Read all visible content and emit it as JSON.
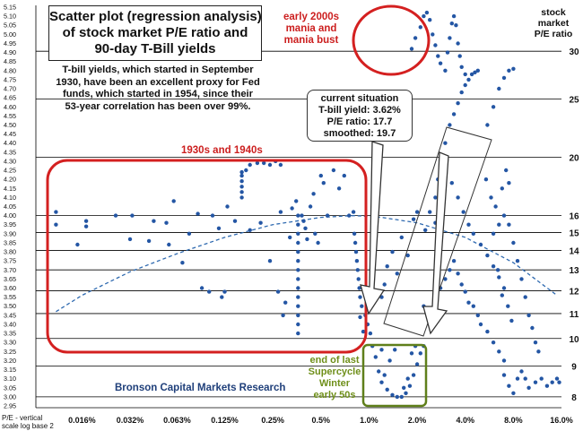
{
  "title_box": {
    "line1": "Scatter plot (regression analysis)",
    "line2": "of stock market P/E ratio and",
    "line3": "90-day T-Bill yields"
  },
  "description": {
    "line1": "T-bill yields, which started in September",
    "line2": "1930, have been an excellent proxy for Fed",
    "line3": "funds, which started in 1954, since their",
    "line4": "53-year correlation has been over 99%."
  },
  "current_situation": {
    "line1": "current situation",
    "line2": "T-bill yield: 3.62%",
    "line3": "P/E ratio: 17.7",
    "line4": "smoothed: 19.7"
  },
  "annotations": {
    "mania_line1": "early 2000s",
    "mania_line2": "mania and",
    "mania_line3": "mania bust",
    "thirties": "1930s and 1940s",
    "winter_line1": "end of last",
    "winter_line2": "Supercycle",
    "winter_line3": "Winter",
    "winter_line4": "early 50s",
    "source": "Bronson Capital Markets Research"
  },
  "right_axis_label": {
    "line1": "stock",
    "line2": "market",
    "line3": "P/E ratio"
  },
  "left_axis_note": {
    "line1": "P/E - vertical",
    "line2": "scale log base 2"
  },
  "colors": {
    "points": "#2456a4",
    "red_box": "#d42020",
    "green_box": "#5f7f1a",
    "curve": "#2f6ab0",
    "grid": "#000000"
  },
  "chart_data": {
    "type": "scatter",
    "xscale": "log2",
    "xlim": [
      0.0001,
      0.16
    ],
    "x_ticks": [
      0.00016,
      0.00032,
      0.00063,
      0.00125,
      0.0025,
      0.005,
      0.01,
      0.02,
      0.04,
      0.08,
      0.16
    ],
    "x_tick_labels": [
      "0.016%",
      "0.032%",
      "0.063%",
      "0.125%",
      "0.25%",
      "0.5%",
      "1.0%",
      "2.0%",
      "4.0%",
      "8.0%",
      "16.0%"
    ],
    "ylim": [
      2.94,
      5.16
    ],
    "y_ticks": [
      2.95,
      3.0,
      3.05,
      3.1,
      3.15,
      3.2,
      3.25,
      3.3,
      3.35,
      3.4,
      3.45,
      3.5,
      3.55,
      3.6,
      3.65,
      3.7,
      3.75,
      3.8,
      3.85,
      3.9,
      3.95,
      4.0,
      4.05,
      4.1,
      4.15,
      4.2,
      4.25,
      4.3,
      4.35,
      4.4,
      4.45,
      4.5,
      4.55,
      4.6,
      4.65,
      4.7,
      4.75,
      4.8,
      4.85,
      4.9,
      4.95,
      5.0,
      5.05,
      5.1,
      5.15
    ],
    "y_tick_labels": [
      "2.95",
      "3.00",
      "3.05",
      "3.10",
      "3.15",
      "3.20",
      "3.25",
      "3.30",
      "3.35",
      "3.40",
      "3.45",
      "3.50",
      "3.55",
      "3.60",
      "3.65",
      "3.70",
      "3.75",
      "3.80",
      "3.85",
      "3.90",
      "3.95",
      "4.00",
      "4.05",
      "4.10",
      "4.15",
      "4.20",
      "4.25",
      "4.30",
      "4.35",
      "4.40",
      "4.45",
      "4.50",
      "4.55",
      "4.60",
      "4.65",
      "4.70",
      "4.75",
      "4.80",
      "4.85",
      "4.90",
      "4.95",
      "5.00",
      "5.05",
      "5.10",
      "5.15"
    ],
    "right_ticks": [
      30,
      25,
      20,
      16,
      15,
      14,
      13,
      12,
      11,
      10,
      9,
      8
    ],
    "right_tick_labels": [
      "30",
      "25",
      "20",
      "16",
      "15",
      "14",
      "13",
      "12",
      "11",
      "10",
      "9",
      "8"
    ],
    "regression_curve": {
      "x": [
        0.00011,
        0.00016,
        0.00032,
        0.00063,
        0.00125,
        0.0025,
        0.005,
        0.008,
        0.012,
        0.02,
        0.04,
        0.08,
        0.15
      ],
      "y": [
        3.47,
        3.56,
        3.69,
        3.79,
        3.88,
        3.95,
        3.99,
        4.0,
        3.99,
        3.96,
        3.88,
        3.74,
        3.56
      ]
    },
    "series": [
      {
        "points": [
          [
            0.00011,
            3.95
          ],
          [
            0.00011,
            4.02
          ],
          [
            0.00015,
            3.84
          ],
          [
            0.00017,
            3.94
          ],
          [
            0.00017,
            3.97
          ],
          [
            0.00026,
            4.0
          ],
          [
            0.00032,
            3.87
          ],
          [
            0.00033,
            4.0
          ],
          [
            0.00042,
            3.86
          ],
          [
            0.00045,
            3.97
          ],
          [
            0.00054,
            3.96
          ],
          [
            0.00056,
            3.84
          ],
          [
            0.0006,
            4.08
          ],
          [
            0.00068,
            3.74
          ],
          [
            0.00075,
            3.9
          ],
          [
            0.00085,
            4.01
          ],
          [
            0.0009,
            3.6
          ],
          [
            0.001,
            3.58
          ],
          [
            0.00105,
            4.0
          ],
          [
            0.00115,
            3.93
          ],
          [
            0.0012,
            3.55
          ],
          [
            0.00125,
            3.58
          ],
          [
            0.0013,
            4.05
          ],
          [
            0.00145,
            3.97
          ],
          [
            0.0016,
            4.24
          ],
          [
            0.0016,
            4.22
          ],
          [
            0.0016,
            4.19
          ],
          [
            0.0016,
            4.16
          ],
          [
            0.0016,
            4.13
          ],
          [
            0.0016,
            4.1
          ],
          [
            0.0017,
            4.25
          ],
          [
            0.0018,
            4.28
          ],
          [
            0.002,
            4.29
          ],
          [
            0.0022,
            4.29
          ],
          [
            0.0024,
            4.28
          ],
          [
            0.0026,
            4.3
          ],
          [
            0.0028,
            4.28
          ],
          [
            0.0018,
            3.92
          ],
          [
            0.0021,
            3.96
          ],
          [
            0.0024,
            3.75
          ],
          [
            0.0027,
            3.58
          ],
          [
            0.0028,
            4.02
          ],
          [
            0.0029,
            3.45
          ],
          [
            0.003,
            3.52
          ],
          [
            0.0032,
            3.88
          ],
          [
            0.0033,
            4.04
          ],
          [
            0.0035,
            4.08
          ],
          [
            0.0036,
            4.0
          ],
          [
            0.0036,
            3.95
          ],
          [
            0.0036,
            3.9
          ],
          [
            0.0036,
            3.85
          ],
          [
            0.0036,
            3.8
          ],
          [
            0.0036,
            3.75
          ],
          [
            0.0036,
            3.7
          ],
          [
            0.0036,
            3.65
          ],
          [
            0.0036,
            3.6
          ],
          [
            0.0036,
            3.55
          ],
          [
            0.0036,
            3.5
          ],
          [
            0.0036,
            3.45
          ],
          [
            0.0036,
            3.4
          ],
          [
            0.0036,
            3.35
          ],
          [
            0.0038,
            4.0
          ],
          [
            0.0039,
            3.97
          ],
          [
            0.004,
            3.93
          ],
          [
            0.0041,
            3.87
          ],
          [
            0.0043,
            4.05
          ],
          [
            0.0045,
            4.12
          ],
          [
            0.0046,
            3.9
          ],
          [
            0.0048,
            3.85
          ],
          [
            0.005,
            4.22
          ],
          [
            0.0052,
            4.18
          ],
          [
            0.0055,
            4.0
          ],
          [
            0.006,
            4.25
          ],
          [
            0.0065,
            4.15
          ],
          [
            0.007,
            4.22
          ],
          [
            0.0075,
            4.0
          ],
          [
            0.008,
            4.02
          ],
          [
            0.0081,
            3.9
          ],
          [
            0.0082,
            3.85
          ],
          [
            0.0083,
            3.8
          ],
          [
            0.0084,
            3.75
          ],
          [
            0.0085,
            3.7
          ],
          [
            0.0086,
            3.65
          ],
          [
            0.0087,
            3.6
          ],
          [
            0.0088,
            3.55
          ],
          [
            0.009,
            3.5
          ],
          [
            0.0095,
            3.45
          ],
          [
            0.0098,
            3.4
          ],
          [
            0.0092,
            3.36
          ],
          [
            0.0088,
            3.44
          ],
          [
            0.0102,
            3.35
          ],
          [
            0.0105,
            3.28
          ],
          [
            0.011,
            3.22
          ],
          [
            0.0115,
            3.14
          ],
          [
            0.012,
            3.08
          ],
          [
            0.013,
            3.04
          ],
          [
            0.014,
            3.01
          ],
          [
            0.015,
            3.0
          ],
          [
            0.016,
            3.0
          ],
          [
            0.017,
            3.02
          ],
          [
            0.018,
            3.06
          ],
          [
            0.019,
            3.12
          ],
          [
            0.02,
            3.18
          ],
          [
            0.021,
            3.24
          ],
          [
            0.022,
            3.28
          ],
          [
            0.0165,
            3.05
          ],
          [
            0.0175,
            3.1
          ],
          [
            0.0125,
            3.12
          ],
          [
            0.0135,
            3.2
          ],
          [
            0.0145,
            3.26
          ],
          [
            0.0185,
            3.24
          ],
          [
            0.0195,
            3.28
          ],
          [
            0.012,
            3.26
          ],
          [
            0.012,
            3.55
          ],
          [
            0.0125,
            3.62
          ],
          [
            0.013,
            3.72
          ],
          [
            0.014,
            3.8
          ],
          [
            0.015,
            3.68
          ],
          [
            0.016,
            3.88
          ],
          [
            0.0175,
            3.78
          ],
          [
            0.019,
            3.98
          ],
          [
            0.02,
            4.02
          ],
          [
            0.0225,
            3.92
          ],
          [
            0.024,
            4.02
          ],
          [
            0.026,
            3.96
          ],
          [
            0.026,
            4.1
          ],
          [
            0.027,
            4.2
          ],
          [
            0.028,
            4.3
          ],
          [
            0.03,
            4.4
          ],
          [
            0.032,
            4.5
          ],
          [
            0.034,
            4.56
          ],
          [
            0.036,
            4.62
          ],
          [
            0.038,
            4.68
          ],
          [
            0.04,
            4.72
          ],
          [
            0.042,
            4.75
          ],
          [
            0.044,
            4.78
          ],
          [
            0.046,
            4.79
          ],
          [
            0.048,
            4.8
          ],
          [
            0.03,
            4.28
          ],
          [
            0.033,
            4.18
          ],
          [
            0.036,
            4.1
          ],
          [
            0.039,
            4.02
          ],
          [
            0.042,
            3.95
          ],
          [
            0.045,
            3.9
          ],
          [
            0.05,
            3.84
          ],
          [
            0.055,
            3.78
          ],
          [
            0.06,
            3.72
          ],
          [
            0.065,
            3.66
          ],
          [
            0.07,
            3.6
          ],
          [
            0.022,
            3.5
          ],
          [
            0.024,
            3.45
          ],
          [
            0.026,
            3.55
          ],
          [
            0.028,
            3.6
          ],
          [
            0.03,
            3.65
          ],
          [
            0.032,
            3.7
          ],
          [
            0.034,
            3.75
          ],
          [
            0.036,
            3.68
          ],
          [
            0.038,
            3.62
          ],
          [
            0.04,
            3.58
          ],
          [
            0.042,
            3.52
          ],
          [
            0.045,
            3.5
          ],
          [
            0.048,
            3.45
          ],
          [
            0.05,
            3.4
          ],
          [
            0.055,
            3.36
          ],
          [
            0.06,
            3.3
          ],
          [
            0.065,
            3.25
          ],
          [
            0.07,
            3.2
          ],
          [
            0.06,
            3.9
          ],
          [
            0.065,
            3.95
          ],
          [
            0.07,
            4.0
          ],
          [
            0.075,
            3.95
          ],
          [
            0.08,
            3.85
          ],
          [
            0.085,
            3.75
          ],
          [
            0.09,
            3.65
          ],
          [
            0.095,
            3.55
          ],
          [
            0.1,
            3.45
          ],
          [
            0.105,
            3.38
          ],
          [
            0.11,
            3.3
          ],
          [
            0.115,
            3.25
          ],
          [
            0.07,
            3.12
          ],
          [
            0.075,
            3.06
          ],
          [
            0.08,
            3.02
          ],
          [
            0.085,
            3.1
          ],
          [
            0.09,
            3.14
          ],
          [
            0.095,
            3.1
          ],
          [
            0.1,
            3.05
          ],
          [
            0.11,
            3.08
          ],
          [
            0.12,
            3.1
          ],
          [
            0.13,
            3.06
          ],
          [
            0.14,
            3.08
          ],
          [
            0.15,
            3.1
          ],
          [
            0.155,
            3.08
          ],
          [
            0.054,
            4.2
          ],
          [
            0.058,
            4.1
          ],
          [
            0.062,
            4.05
          ],
          [
            0.068,
            4.15
          ],
          [
            0.072,
            4.25
          ],
          [
            0.075,
            4.18
          ],
          [
            0.064,
            3.7
          ],
          [
            0.068,
            3.56
          ],
          [
            0.074,
            3.5
          ],
          [
            0.078,
            3.42
          ],
          [
            0.055,
            4.5
          ],
          [
            0.06,
            4.6
          ],
          [
            0.065,
            4.7
          ],
          [
            0.07,
            4.76
          ],
          [
            0.075,
            4.8
          ],
          [
            0.08,
            4.81
          ],
          [
            0.0185,
            4.92
          ],
          [
            0.0195,
            4.98
          ],
          [
            0.021,
            5.04
          ],
          [
            0.022,
            5.1
          ],
          [
            0.023,
            5.12
          ],
          [
            0.024,
            5.08
          ],
          [
            0.025,
            5.0
          ],
          [
            0.026,
            4.94
          ],
          [
            0.027,
            4.88
          ],
          [
            0.028,
            4.84
          ],
          [
            0.03,
            4.8
          ],
          [
            0.031,
            4.9
          ],
          [
            0.032,
            4.98
          ],
          [
            0.033,
            5.06
          ],
          [
            0.034,
            5.1
          ],
          [
            0.035,
            5.05
          ],
          [
            0.036,
            4.95
          ],
          [
            0.037,
            4.88
          ],
          [
            0.038,
            4.82
          ],
          [
            0.04,
            4.78
          ]
        ]
      }
    ]
  }
}
